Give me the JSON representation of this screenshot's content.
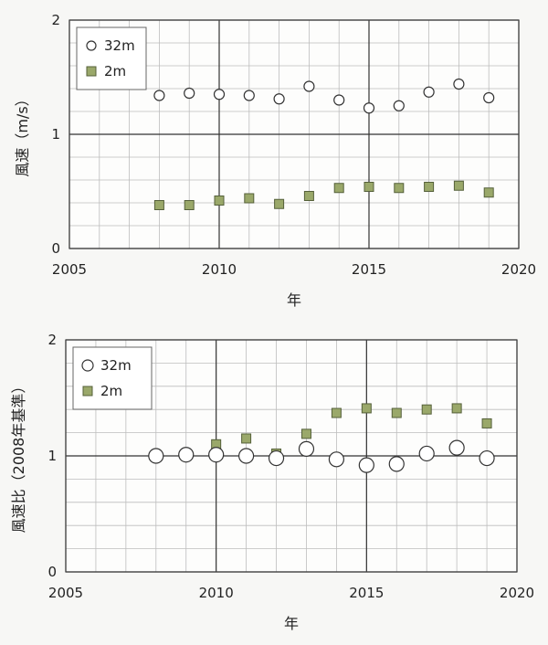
{
  "chart_data": [
    {
      "type": "scatter",
      "xlabel": "年",
      "ylabel": "風速（m/s）",
      "xlim": [
        2005,
        2020
      ],
      "ylim": [
        0,
        2
      ],
      "xticks": [
        "2005",
        "2010",
        "2015",
        "2020"
      ],
      "yticks": [
        "0",
        "1",
        "2"
      ],
      "grid": true,
      "legend": "top-left",
      "x": [
        2008,
        2009,
        2010,
        2011,
        2012,
        2013,
        2014,
        2015,
        2016,
        2017,
        2018,
        2019
      ],
      "series": [
        {
          "name": "32m",
          "marker": "circle",
          "values": [
            1.34,
            1.36,
            1.35,
            1.34,
            1.31,
            1.42,
            1.3,
            1.23,
            1.25,
            1.37,
            1.44,
            1.32
          ]
        },
        {
          "name": "2m",
          "marker": "square",
          "color": "#9aa86a",
          "values": [
            0.38,
            0.38,
            0.42,
            0.44,
            0.39,
            0.46,
            0.53,
            0.54,
            0.53,
            0.54,
            0.55,
            0.49
          ]
        }
      ]
    },
    {
      "type": "scatter",
      "xlabel": "年",
      "ylabel": "風速比（2008年基準）",
      "xlim": [
        2005,
        2020
      ],
      "ylim": [
        0,
        2
      ],
      "xticks": [
        "2005",
        "2010",
        "2015",
        "2020"
      ],
      "yticks": [
        "0",
        "1",
        "2"
      ],
      "grid": true,
      "legend": "top-left",
      "x": [
        2008,
        2009,
        2010,
        2011,
        2012,
        2013,
        2014,
        2015,
        2016,
        2017,
        2018,
        2019
      ],
      "series": [
        {
          "name": "32m",
          "marker": "circle",
          "values": [
            1.0,
            1.01,
            1.01,
            1.0,
            0.98,
            1.06,
            0.97,
            0.92,
            0.93,
            1.02,
            1.07,
            0.98
          ]
        },
        {
          "name": "2m",
          "marker": "square",
          "color": "#9aa86a",
          "values": [
            1.0,
            1.0,
            1.1,
            1.15,
            1.02,
            1.19,
            1.37,
            1.41,
            1.37,
            1.4,
            1.41,
            1.28
          ]
        }
      ]
    }
  ]
}
